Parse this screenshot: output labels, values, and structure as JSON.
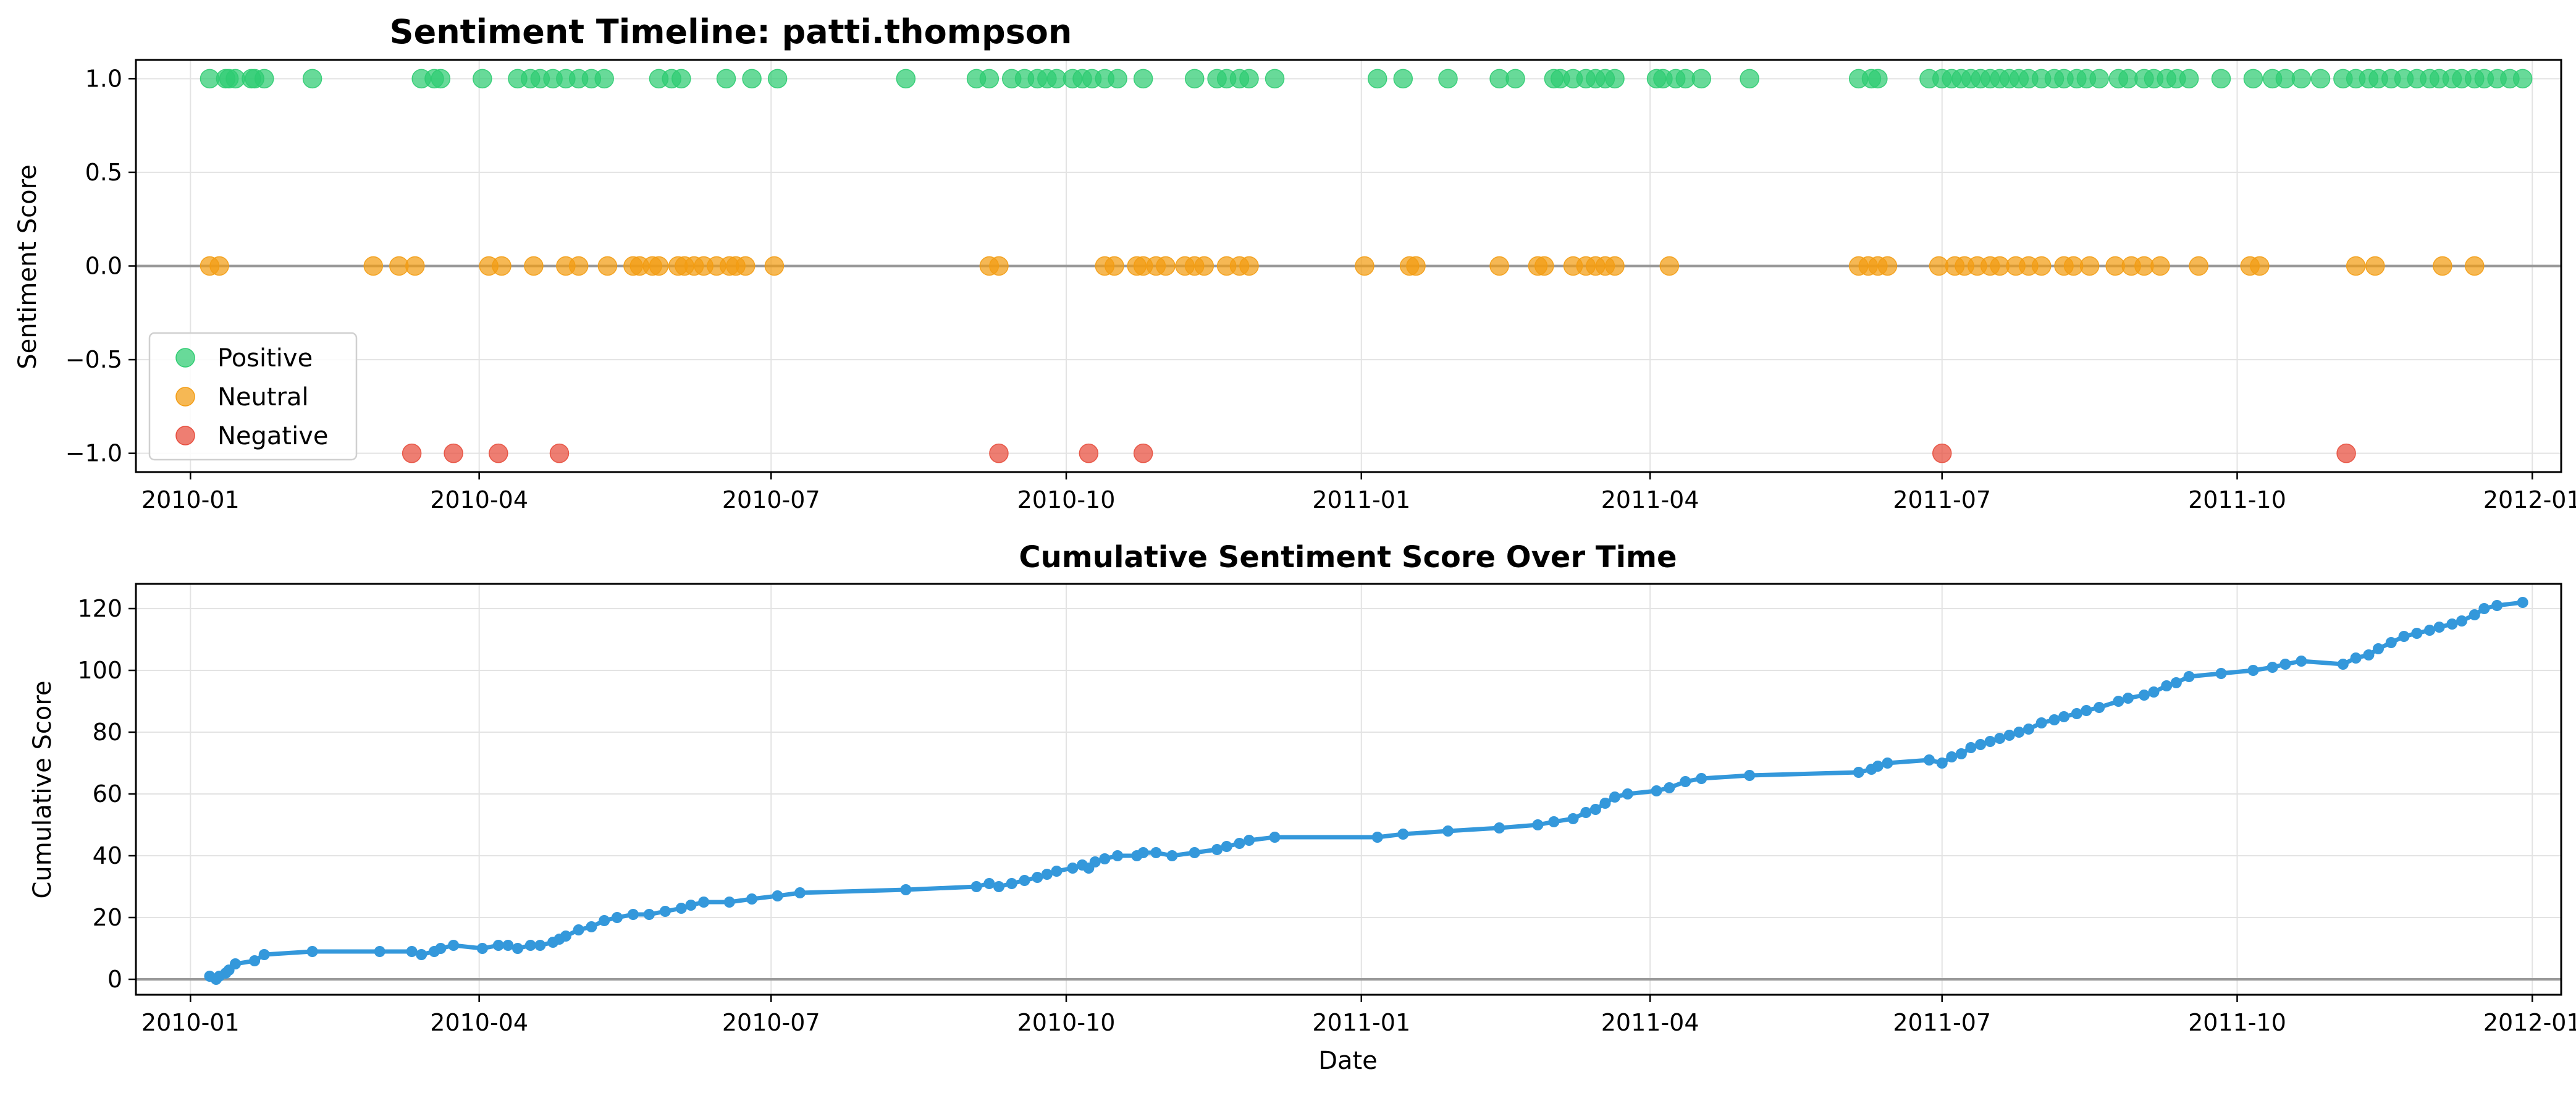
{
  "figure": {
    "background": "#ffffff"
  },
  "chart_data": [
    {
      "type": "scatter",
      "title": "Sentiment Timeline: patti.thompson",
      "xlabel": "",
      "ylabel": "Sentiment Score",
      "x_tick_labels": [
        "2010-01",
        "2010-04",
        "2010-07",
        "2010-10",
        "2011-01",
        "2011-04",
        "2011-07",
        "2011-10",
        "2012-01"
      ],
      "y_tick_labels": [
        "1.0",
        "0.5",
        "0.0",
        "−0.5",
        "−1.0"
      ],
      "y_ticks": [
        1.0,
        0.5,
        0.0,
        -0.5,
        -1.0
      ],
      "xlim": [
        "2009-12-15",
        "2012-01-10"
      ],
      "ylim": [
        -1.1,
        1.1
      ],
      "grid": true,
      "reference_line_y": 0,
      "legend": {
        "placement": "lower-left",
        "entries": [
          "Positive",
          "Neutral",
          "Negative"
        ]
      },
      "series": [
        {
          "name": "Positive",
          "value": 1,
          "color": "#2ecc71",
          "dates": [
            "2010-01-07",
            "2010-01-12",
            "2010-01-13",
            "2010-01-15",
            "2010-01-20",
            "2010-01-21",
            "2010-01-24",
            "2010-02-08",
            "2010-03-14",
            "2010-03-18",
            "2010-03-20",
            "2010-04-02",
            "2010-04-13",
            "2010-04-17",
            "2010-04-20",
            "2010-04-24",
            "2010-04-28",
            "2010-05-02",
            "2010-05-06",
            "2010-05-10",
            "2010-05-27",
            "2010-05-31",
            "2010-06-03",
            "2010-06-17",
            "2010-06-25",
            "2010-07-03",
            "2010-08-12",
            "2010-09-03",
            "2010-09-07",
            "2010-09-14",
            "2010-09-18",
            "2010-09-22",
            "2010-09-25",
            "2010-09-28",
            "2010-10-03",
            "2010-10-06",
            "2010-10-09",
            "2010-10-13",
            "2010-10-17",
            "2010-10-25",
            "2010-11-10",
            "2010-11-17",
            "2010-11-20",
            "2010-11-24",
            "2010-11-27",
            "2010-12-05",
            "2011-01-06",
            "2011-01-14",
            "2011-01-28",
            "2011-02-13",
            "2011-02-18",
            "2011-03-02",
            "2011-03-04",
            "2011-03-08",
            "2011-03-12",
            "2011-03-15",
            "2011-03-18",
            "2011-03-21",
            "2011-04-03",
            "2011-04-05",
            "2011-04-09",
            "2011-04-12",
            "2011-04-17",
            "2011-05-02",
            "2011-06-05",
            "2011-06-09",
            "2011-06-11",
            "2011-06-27",
            "2011-07-01",
            "2011-07-04",
            "2011-07-07",
            "2011-07-10",
            "2011-07-13",
            "2011-07-16",
            "2011-07-19",
            "2011-07-22",
            "2011-07-25",
            "2011-07-28",
            "2011-08-01",
            "2011-08-05",
            "2011-08-08",
            "2011-08-12",
            "2011-08-15",
            "2011-08-19",
            "2011-08-25",
            "2011-08-28",
            "2011-09-02",
            "2011-09-05",
            "2011-09-09",
            "2011-09-12",
            "2011-09-16",
            "2011-09-26",
            "2011-10-06",
            "2011-10-12",
            "2011-10-16",
            "2011-10-21",
            "2011-10-27",
            "2011-11-03",
            "2011-11-07",
            "2011-11-11",
            "2011-11-14",
            "2011-11-18",
            "2011-11-22",
            "2011-11-26",
            "2011-11-30",
            "2011-12-03",
            "2011-12-07",
            "2011-12-10",
            "2011-12-14",
            "2011-12-17",
            "2011-12-21",
            "2011-12-25",
            "2011-12-29"
          ]
        },
        {
          "name": "Neutral",
          "value": 0,
          "color": "#f39c12",
          "dates": [
            "2010-01-07",
            "2010-01-10",
            "2010-02-27",
            "2010-03-07",
            "2010-03-12",
            "2010-04-04",
            "2010-04-08",
            "2010-04-18",
            "2010-04-28",
            "2010-05-02",
            "2010-05-11",
            "2010-05-19",
            "2010-05-21",
            "2010-05-25",
            "2010-05-27",
            "2010-06-02",
            "2010-06-04",
            "2010-06-07",
            "2010-06-10",
            "2010-06-14",
            "2010-06-18",
            "2010-06-20",
            "2010-06-23",
            "2010-07-02",
            "2010-09-07",
            "2010-09-10",
            "2010-10-13",
            "2010-10-16",
            "2010-10-23",
            "2010-10-25",
            "2010-10-29",
            "2010-11-01",
            "2010-11-07",
            "2010-11-10",
            "2010-11-13",
            "2010-11-20",
            "2010-11-24",
            "2010-11-27",
            "2011-01-02",
            "2011-01-16",
            "2011-01-18",
            "2011-02-13",
            "2011-02-25",
            "2011-02-27",
            "2011-03-08",
            "2011-03-12",
            "2011-03-15",
            "2011-03-18",
            "2011-03-21",
            "2011-04-07",
            "2011-06-05",
            "2011-06-08",
            "2011-06-11",
            "2011-06-14",
            "2011-06-30",
            "2011-07-05",
            "2011-07-08",
            "2011-07-12",
            "2011-07-16",
            "2011-07-19",
            "2011-07-24",
            "2011-07-28",
            "2011-08-01",
            "2011-08-08",
            "2011-08-11",
            "2011-08-16",
            "2011-08-24",
            "2011-08-29",
            "2011-09-02",
            "2011-09-07",
            "2011-09-19",
            "2011-10-05",
            "2011-10-08",
            "2011-11-07",
            "2011-11-13",
            "2011-12-04",
            "2011-12-14"
          ]
        },
        {
          "name": "Negative",
          "value": -1,
          "color": "#e74c3c",
          "dates": [
            "2010-03-11",
            "2010-03-24",
            "2010-04-07",
            "2010-04-26",
            "2010-09-10",
            "2010-10-08",
            "2010-10-25",
            "2011-07-01",
            "2011-11-04"
          ]
        }
      ]
    },
    {
      "type": "line",
      "title": "Cumulative Sentiment Score Over Time",
      "xlabel": "Date",
      "ylabel": "Cumulative Score",
      "x_tick_labels": [
        "2010-01",
        "2010-04",
        "2010-07",
        "2010-10",
        "2011-01",
        "2011-04",
        "2011-07",
        "2011-10",
        "2012-01"
      ],
      "y_tick_labels": [
        "0",
        "20",
        "40",
        "60",
        "80",
        "100",
        "120"
      ],
      "y_ticks": [
        0,
        20,
        40,
        60,
        80,
        100,
        120
      ],
      "xlim": [
        "2009-12-15",
        "2012-01-10"
      ],
      "ylim": [
        -5,
        128
      ],
      "grid": true,
      "reference_line_y": 0,
      "series": [
        {
          "name": "",
          "color": "#3498db",
          "points": [
            [
              "2010-01-07",
              1
            ],
            [
              "2010-01-09",
              0
            ],
            [
              "2010-01-10",
              1
            ],
            [
              "2010-01-12",
              2
            ],
            [
              "2010-01-13",
              3
            ],
            [
              "2010-01-15",
              5
            ],
            [
              "2010-01-21",
              6
            ],
            [
              "2010-01-24",
              8
            ],
            [
              "2010-02-08",
              9
            ],
            [
              "2010-03-01",
              9
            ],
            [
              "2010-03-11",
              9
            ],
            [
              "2010-03-14",
              8
            ],
            [
              "2010-03-18",
              9
            ],
            [
              "2010-03-20",
              10
            ],
            [
              "2010-03-24",
              11
            ],
            [
              "2010-04-02",
              10
            ],
            [
              "2010-04-07",
              11
            ],
            [
              "2010-04-10",
              11
            ],
            [
              "2010-04-13",
              10
            ],
            [
              "2010-04-17",
              11
            ],
            [
              "2010-04-20",
              11
            ],
            [
              "2010-04-24",
              12
            ],
            [
              "2010-04-26",
              13
            ],
            [
              "2010-04-28",
              14
            ],
            [
              "2010-05-02",
              16
            ],
            [
              "2010-05-06",
              17
            ],
            [
              "2010-05-10",
              19
            ],
            [
              "2010-05-14",
              20
            ],
            [
              "2010-05-19",
              21
            ],
            [
              "2010-05-24",
              21
            ],
            [
              "2010-05-29",
              22
            ],
            [
              "2010-06-03",
              23
            ],
            [
              "2010-06-06",
              24
            ],
            [
              "2010-06-10",
              25
            ],
            [
              "2010-06-18",
              25
            ],
            [
              "2010-06-25",
              26
            ],
            [
              "2010-07-03",
              27
            ],
            [
              "2010-07-10",
              28
            ],
            [
              "2010-08-12",
              29
            ],
            [
              "2010-09-03",
              30
            ],
            [
              "2010-09-07",
              31
            ],
            [
              "2010-09-10",
              30
            ],
            [
              "2010-09-14",
              31
            ],
            [
              "2010-09-18",
              32
            ],
            [
              "2010-09-22",
              33
            ],
            [
              "2010-09-25",
              34
            ],
            [
              "2010-09-28",
              35
            ],
            [
              "2010-10-03",
              36
            ],
            [
              "2010-10-06",
              37
            ],
            [
              "2010-10-08",
              36
            ],
            [
              "2010-10-10",
              38
            ],
            [
              "2010-10-13",
              39
            ],
            [
              "2010-10-17",
              40
            ],
            [
              "2010-10-23",
              40
            ],
            [
              "2010-10-25",
              41
            ],
            [
              "2010-10-29",
              41
            ],
            [
              "2010-11-03",
              40
            ],
            [
              "2010-11-10",
              41
            ],
            [
              "2010-11-17",
              42
            ],
            [
              "2010-11-20",
              43
            ],
            [
              "2010-11-24",
              44
            ],
            [
              "2010-11-27",
              45
            ],
            [
              "2010-12-05",
              46
            ],
            [
              "2011-01-06",
              46
            ],
            [
              "2011-01-14",
              47
            ],
            [
              "2011-01-28",
              48
            ],
            [
              "2011-02-13",
              49
            ],
            [
              "2011-02-25",
              50
            ],
            [
              "2011-03-02",
              51
            ],
            [
              "2011-03-08",
              52
            ],
            [
              "2011-03-12",
              54
            ],
            [
              "2011-03-15",
              55
            ],
            [
              "2011-03-18",
              57
            ],
            [
              "2011-03-21",
              59
            ],
            [
              "2011-03-25",
              60
            ],
            [
              "2011-04-03",
              61
            ],
            [
              "2011-04-07",
              62
            ],
            [
              "2011-04-12",
              64
            ],
            [
              "2011-04-17",
              65
            ],
            [
              "2011-05-02",
              66
            ],
            [
              "2011-06-05",
              67
            ],
            [
              "2011-06-09",
              68
            ],
            [
              "2011-06-11",
              69
            ],
            [
              "2011-06-14",
              70
            ],
            [
              "2011-06-27",
              71
            ],
            [
              "2011-07-01",
              70
            ],
            [
              "2011-07-04",
              72
            ],
            [
              "2011-07-07",
              73
            ],
            [
              "2011-07-10",
              75
            ],
            [
              "2011-07-13",
              76
            ],
            [
              "2011-07-16",
              77
            ],
            [
              "2011-07-19",
              78
            ],
            [
              "2011-07-22",
              79
            ],
            [
              "2011-07-25",
              80
            ],
            [
              "2011-07-28",
              81
            ],
            [
              "2011-08-01",
              83
            ],
            [
              "2011-08-05",
              84
            ],
            [
              "2011-08-08",
              85
            ],
            [
              "2011-08-12",
              86
            ],
            [
              "2011-08-15",
              87
            ],
            [
              "2011-08-19",
              88
            ],
            [
              "2011-08-25",
              90
            ],
            [
              "2011-08-28",
              91
            ],
            [
              "2011-09-02",
              92
            ],
            [
              "2011-09-05",
              93
            ],
            [
              "2011-09-09",
              95
            ],
            [
              "2011-09-12",
              96
            ],
            [
              "2011-09-16",
              98
            ],
            [
              "2011-09-26",
              99
            ],
            [
              "2011-10-06",
              100
            ],
            [
              "2011-10-12",
              101
            ],
            [
              "2011-10-16",
              102
            ],
            [
              "2011-10-21",
              103
            ],
            [
              "2011-11-03",
              102
            ],
            [
              "2011-11-07",
              104
            ],
            [
              "2011-11-11",
              105
            ],
            [
              "2011-11-14",
              107
            ],
            [
              "2011-11-18",
              109
            ],
            [
              "2011-11-22",
              111
            ],
            [
              "2011-11-26",
              112
            ],
            [
              "2011-11-30",
              113
            ],
            [
              "2011-12-03",
              114
            ],
            [
              "2011-12-07",
              115
            ],
            [
              "2011-12-10",
              116
            ],
            [
              "2011-12-14",
              118
            ],
            [
              "2011-12-17",
              120
            ],
            [
              "2011-12-21",
              121
            ],
            [
              "2011-12-29",
              122
            ]
          ]
        }
      ]
    }
  ]
}
